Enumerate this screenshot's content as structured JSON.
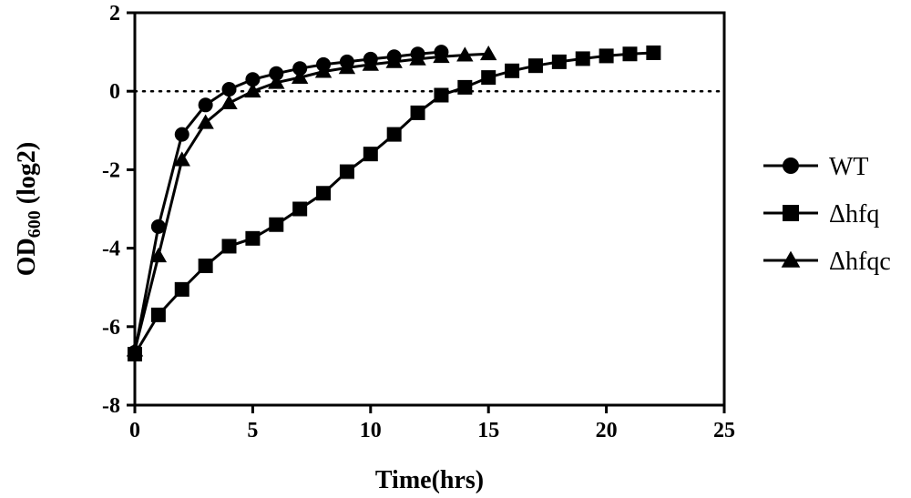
{
  "chart_data": {
    "type": "line",
    "title": "",
    "xlabel": "Time(hrs)",
    "ylabel": {
      "base": "OD",
      "sub": "600",
      "suffix": " (log2)"
    },
    "xlim": [
      0,
      25
    ],
    "ylim": [
      -8,
      2
    ],
    "xticks": [
      0,
      5,
      10,
      15,
      20,
      25
    ],
    "yticks": [
      -8,
      -6,
      -4,
      -2,
      0,
      2
    ],
    "reference_line": {
      "y": 0,
      "style": "dotted"
    },
    "grid": false,
    "legend_position": "right",
    "series": [
      {
        "name": "WT",
        "marker": "circle",
        "x": [
          0,
          1,
          2,
          3,
          4,
          5,
          6,
          7,
          8,
          9,
          10,
          11,
          12,
          13
        ],
        "y": [
          -6.65,
          -3.45,
          -1.1,
          -0.35,
          0.05,
          0.3,
          0.45,
          0.58,
          0.68,
          0.75,
          0.82,
          0.88,
          0.95,
          1.0
        ]
      },
      {
        "name": "Δhfq",
        "marker": "square",
        "x": [
          0,
          1,
          2,
          3,
          4,
          5,
          6,
          7,
          8,
          9,
          10,
          11,
          12,
          13,
          14,
          15,
          16,
          17,
          18,
          19,
          20,
          21,
          22
        ],
        "y": [
          -6.7,
          -5.7,
          -5.05,
          -4.45,
          -3.95,
          -3.75,
          -3.4,
          -3.0,
          -2.6,
          -2.05,
          -1.6,
          -1.1,
          -0.55,
          -0.1,
          0.1,
          0.35,
          0.52,
          0.65,
          0.75,
          0.83,
          0.9,
          0.95,
          0.98
        ]
      },
      {
        "name": "Δhfqc",
        "marker": "triangle",
        "x": [
          0,
          1,
          2,
          3,
          4,
          5,
          6,
          7,
          8,
          9,
          10,
          11,
          12,
          13,
          14,
          15
        ],
        "y": [
          -6.6,
          -4.2,
          -1.75,
          -0.8,
          -0.3,
          0.0,
          0.22,
          0.35,
          0.5,
          0.6,
          0.68,
          0.75,
          0.82,
          0.88,
          0.92,
          0.95
        ]
      }
    ]
  }
}
